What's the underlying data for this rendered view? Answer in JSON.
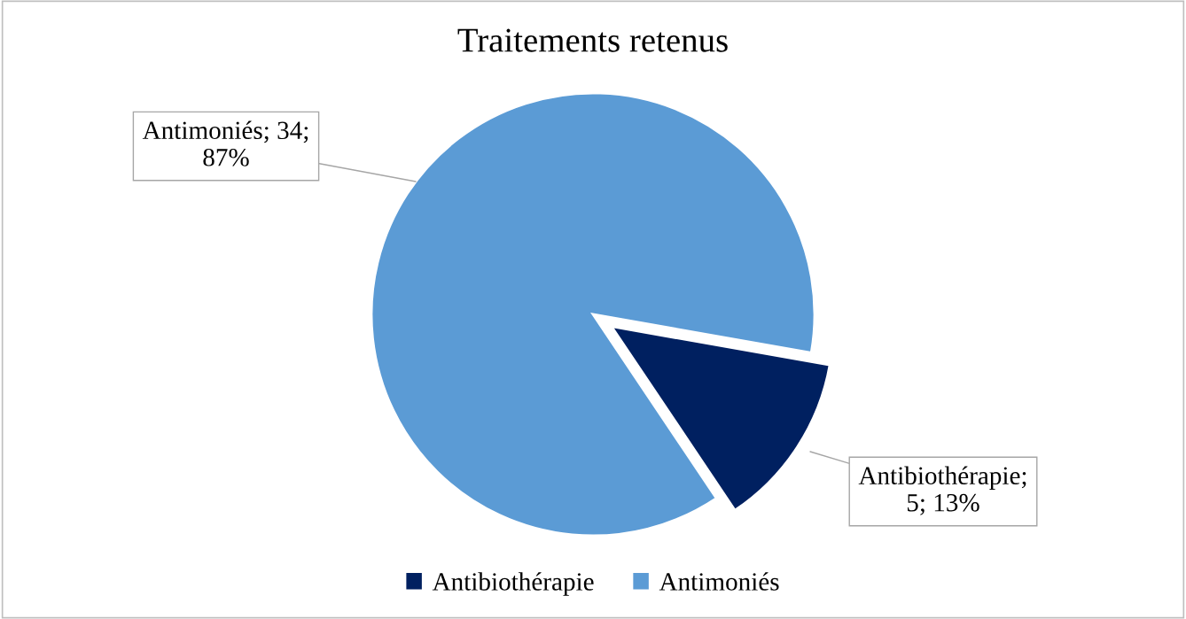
{
  "chart_data": {
    "type": "pie",
    "title": "Traitements retenus",
    "categories": [
      "Antibiothérapie",
      "Antimoniés"
    ],
    "values": [
      5,
      34
    ],
    "colors": [
      "#002060",
      "#5b9bd5"
    ],
    "value_labels": [
      "Antibiothérapie; 5; 13%",
      "Antimoniés; 34; 87%"
    ],
    "legend": "bottom"
  }
}
